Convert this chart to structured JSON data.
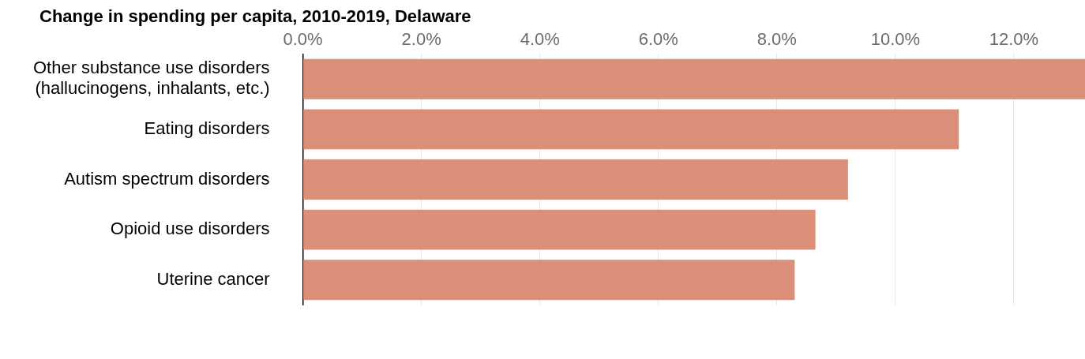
{
  "chart_data": {
    "type": "bar",
    "orientation": "horizontal",
    "title": "Change in spending per capita, 2010-2019, Delaware",
    "categories": [
      "Other substance use disorders (hallucinogens, inhalants, etc.)",
      "Eating disorders",
      "Autism spectrum disorders",
      "Opioid use disorders",
      "Uterine cancer"
    ],
    "values": [
      13.2,
      11.07,
      9.2,
      8.65,
      8.3
    ],
    "color": "#dc8f78",
    "xlim": [
      0,
      13.2
    ],
    "xticks": [
      {
        "value": 0,
        "label": "0.0%"
      },
      {
        "value": 2,
        "label": "2.0%"
      },
      {
        "value": 4,
        "label": "4.0%"
      },
      {
        "value": 6,
        "label": "6.0%"
      },
      {
        "value": 8,
        "label": "8.0%"
      },
      {
        "value": 10,
        "label": "10.0%"
      },
      {
        "value": 12,
        "label": "12.0%"
      }
    ],
    "grid": "x",
    "legend": false
  }
}
